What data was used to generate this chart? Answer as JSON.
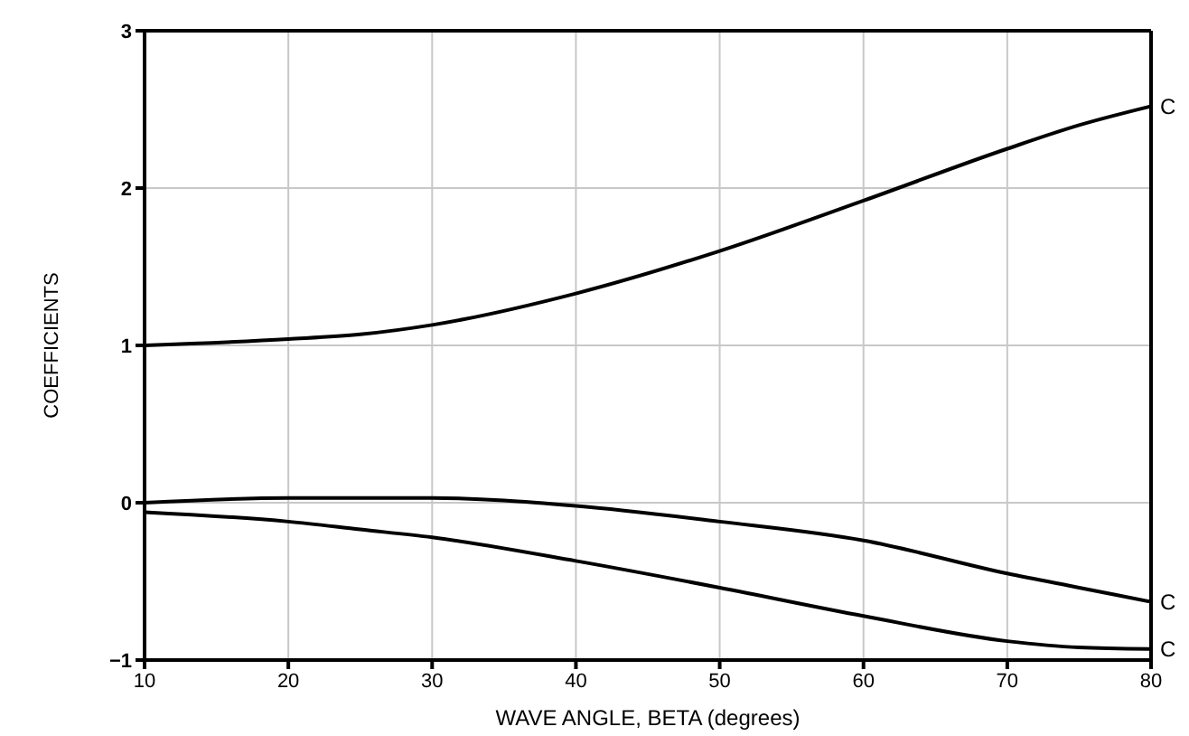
{
  "chart_data": {
    "type": "line",
    "xlabel": "WAVE ANGLE, BETA (degrees)",
    "ylabel": "COEFFICIENTS",
    "x": [
      10,
      20,
      25,
      30,
      40,
      50,
      60,
      70,
      75,
      80
    ],
    "series": [
      {
        "name": "C",
        "color": "#000000",
        "values": [
          1.0,
          1.04,
          1.07,
          1.13,
          1.33,
          1.6,
          1.92,
          2.25,
          2.4,
          2.52
        ]
      },
      {
        "name": "C",
        "color": "#000000",
        "values": [
          0.0,
          0.03,
          0.03,
          0.03,
          -0.02,
          -0.12,
          -0.24,
          -0.45,
          -0.54,
          -0.63
        ]
      },
      {
        "name": "C",
        "color": "#000000",
        "values": [
          -0.06,
          -0.12,
          -0.17,
          -0.22,
          -0.37,
          -0.54,
          -0.72,
          -0.88,
          -0.92,
          -0.93
        ]
      }
    ],
    "xlim": [
      10,
      80
    ],
    "xticks": [
      10,
      20,
      30,
      40,
      50,
      60,
      70,
      80
    ],
    "ylim": [
      -1,
      3
    ],
    "yticks": [
      -1,
      0,
      1,
      2,
      3
    ],
    "grid": true,
    "marker": "none",
    "line_style": "solid"
  }
}
